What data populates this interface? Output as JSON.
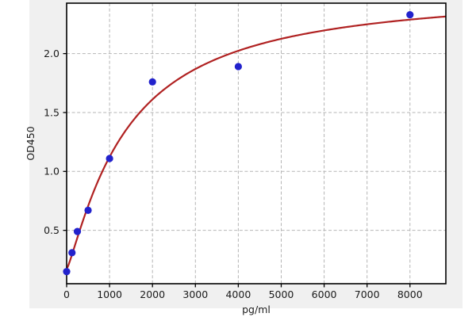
{
  "figure": {
    "page_background": "#ffffff",
    "panel_background": "#f0f0f0",
    "plot_background": "#ffffff",
    "spine_color": "#000000",
    "text_color": "#1a1a1a"
  },
  "chart_data": {
    "type": "scatter",
    "title": "",
    "xlabel": "pg/ml",
    "ylabel": "OD450",
    "categories_pg_ml": [
      0,
      125,
      250,
      500,
      1000,
      2000,
      4000,
      8000
    ],
    "series": [
      {
        "name": "standard-points",
        "type": "scatter",
        "x": [
          0,
          125,
          250,
          500,
          1000,
          2000,
          4000,
          8000
        ],
        "y": [
          0.15,
          0.31,
          0.49,
          0.67,
          1.11,
          1.76,
          1.89,
          2.33
        ],
        "color": "#2222cc",
        "marker_radius": 4.6
      },
      {
        "name": "4pl-fit-curve",
        "type": "line",
        "color": "#b02121",
        "stroke_width": 2.2,
        "fit": {
          "model": "4PL",
          "a": 0.17,
          "b": 1.2,
          "c": 1400,
          "d": 2.55
        }
      }
    ],
    "xlim": [
      0,
      8836
    ],
    "ylim": [
      0.047,
      2.428
    ],
    "xticks": [
      0,
      1000,
      2000,
      3000,
      4000,
      5000,
      6000,
      7000,
      8000
    ],
    "yticks": [
      0.5,
      1.0,
      1.5,
      2.0
    ],
    "ytick_labels": [
      "0.5",
      "1.0",
      "1.5",
      "2.0"
    ],
    "grid": true,
    "grid_style": "dashed",
    "grid_color": "#b5b5b5",
    "legend_position": "none",
    "tick_font_px": 12.5,
    "label_font_px": 12.5
  }
}
